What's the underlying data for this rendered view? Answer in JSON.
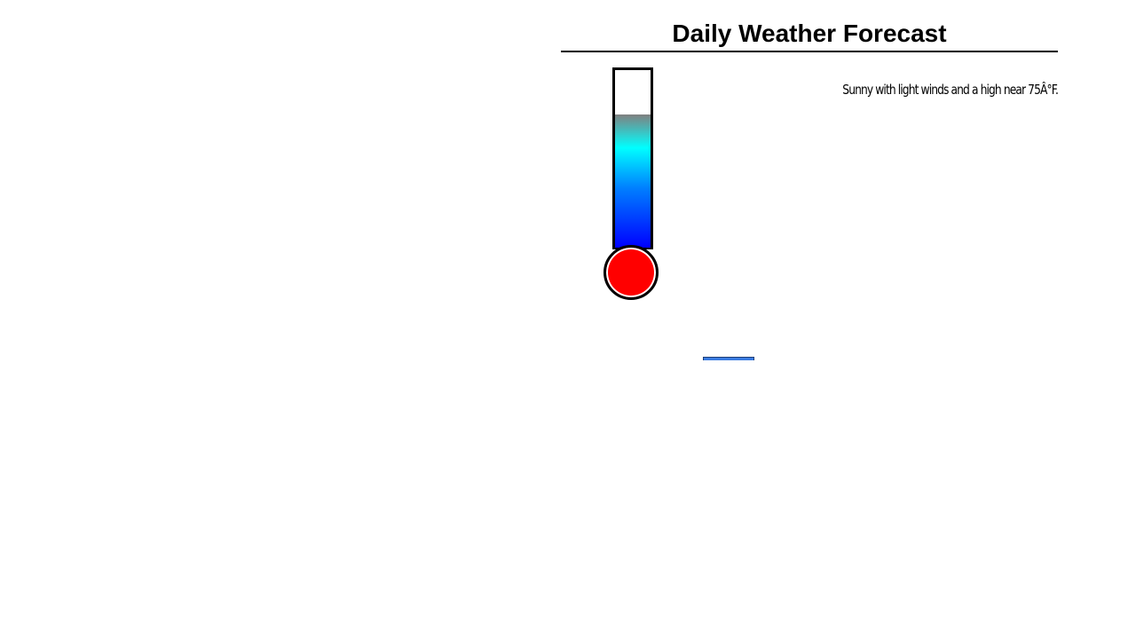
{
  "header": {
    "title": "Daily Weather Forecast"
  },
  "forecast": {
    "description": "Sunny with light winds and a high near 75Â°F."
  },
  "thermometer": {
    "fill_fraction": 0.75,
    "bulb_color": "#ff0000",
    "gradient_colors": [
      "#808080",
      "#00ffff",
      "#0080ff",
      "#0000ff"
    ]
  },
  "button": {
    "color": "#3a7be0"
  }
}
